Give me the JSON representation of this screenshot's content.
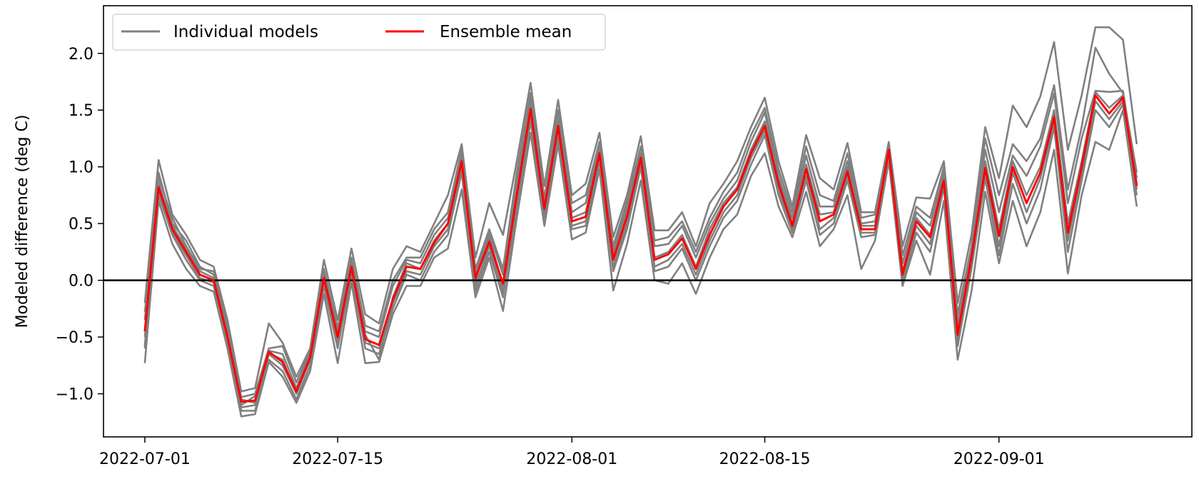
{
  "chart_data": {
    "type": "line",
    "title": "",
    "xlabel": "",
    "ylabel": "Modeled difference (deg C)",
    "x_start": "2022-07-01",
    "x_end": "2022-09-10",
    "xlim": [
      "2022-06-28",
      "2022-09-15"
    ],
    "ylim": [
      -1.38,
      2.42
    ],
    "x_ticks": [
      "2022-07-01",
      "2022-07-15",
      "2022-08-01",
      "2022-08-15",
      "2022-09-01"
    ],
    "y_ticks": [
      -1.0,
      -0.5,
      0.0,
      0.5,
      1.0,
      1.5,
      2.0
    ],
    "y_tick_labels": [
      "−1.0",
      "−0.5",
      "0.0",
      "0.5",
      "1.0",
      "1.5",
      "2.0"
    ],
    "reference_line": {
      "y": 0.0,
      "color": "#000000"
    },
    "legend": {
      "placement": "top-left",
      "entries": [
        {
          "label": "Individual models",
          "color": "#808080"
        },
        {
          "label": "Ensemble mean",
          "color": "#ff0000"
        }
      ]
    },
    "colors": {
      "models": "#808080",
      "mean": "#ff0000"
    },
    "ensemble_mean": [
      -0.45,
      0.82,
      0.45,
      0.25,
      0.05,
      0.0,
      -0.5,
      -1.07,
      -1.06,
      -0.63,
      -0.72,
      -0.98,
      -0.68,
      0.02,
      -0.5,
      0.12,
      -0.52,
      -0.57,
      -0.17,
      0.12,
      0.1,
      0.33,
      0.5,
      1.05,
      0.02,
      0.34,
      -0.03,
      0.75,
      1.51,
      0.63,
      1.36,
      0.52,
      0.56,
      1.12,
      0.18,
      0.56,
      1.08,
      0.18,
      0.23,
      0.37,
      0.1,
      0.4,
      0.65,
      0.8,
      1.12,
      1.36,
      0.85,
      0.48,
      0.98,
      0.52,
      0.58,
      0.96,
      0.45,
      0.45,
      1.15,
      0.05,
      0.52,
      0.38,
      0.88,
      -0.48,
      0.2,
      0.99,
      0.39,
      1.0,
      0.68,
      0.95,
      1.44,
      0.42,
      1.0,
      1.63,
      1.47,
      1.61,
      0.83
    ],
    "models": [
      {
        "values": [
          -0.2,
          1.06,
          0.58,
          0.4,
          0.18,
          0.12,
          -0.35,
          -0.98,
          -0.95,
          -0.38,
          -0.55,
          -0.85,
          -0.6,
          0.18,
          -0.35,
          0.28,
          -0.3,
          -0.38,
          0.1,
          0.3,
          0.25,
          0.5,
          0.75,
          1.2,
          0.2,
          0.68,
          0.4,
          1.05,
          1.74,
          0.83,
          1.59,
          0.75,
          0.85,
          1.3,
          0.38,
          0.75,
          1.27,
          0.44,
          0.44,
          0.6,
          0.3,
          0.68,
          0.85,
          1.05,
          1.35,
          1.61,
          1.05,
          0.65,
          1.28,
          0.9,
          0.8,
          1.21,
          0.6,
          0.6,
          1.22,
          0.3,
          0.73,
          0.72,
          1.05,
          -0.2,
          0.4,
          1.35,
          0.9,
          1.54,
          1.35,
          1.62,
          2.1,
          1.15,
          1.63,
          2.23,
          2.23,
          2.12,
          1.2
        ]
      },
      {
        "values": [
          -0.58,
          0.95,
          0.5,
          0.35,
          0.12,
          0.05,
          -0.4,
          -1.03,
          -1.0,
          -0.6,
          -0.58,
          -0.9,
          -0.62,
          0.1,
          -0.42,
          0.2,
          -0.4,
          -0.45,
          0.0,
          0.2,
          0.2,
          0.45,
          0.6,
          1.15,
          0.1,
          0.45,
          0.1,
          0.95,
          1.65,
          0.72,
          1.5,
          0.68,
          0.75,
          1.22,
          0.3,
          0.7,
          1.18,
          0.35,
          0.38,
          0.52,
          0.25,
          0.55,
          0.78,
          0.95,
          1.28,
          1.52,
          0.98,
          0.6,
          1.18,
          0.75,
          0.7,
          1.12,
          0.55,
          0.58,
          1.2,
          0.22,
          0.65,
          0.55,
          1.0,
          -0.3,
          0.3,
          1.25,
          0.75,
          1.2,
          1.05,
          1.25,
          1.72,
          0.8,
          1.35,
          2.05,
          1.82,
          1.65,
          0.95
        ]
      },
      {
        "values": [
          -0.35,
          0.9,
          0.55,
          0.3,
          0.1,
          0.08,
          -0.45,
          -1.1,
          -1.02,
          -0.62,
          -0.65,
          -0.95,
          -0.65,
          0.05,
          -0.48,
          0.15,
          -0.45,
          -0.5,
          -0.05,
          0.18,
          0.15,
          0.4,
          0.55,
          1.1,
          0.05,
          0.42,
          0.05,
          0.88,
          1.58,
          0.68,
          1.45,
          0.6,
          0.68,
          1.18,
          0.25,
          0.65,
          1.12,
          0.3,
          0.32,
          0.48,
          0.2,
          0.5,
          0.72,
          0.88,
          1.22,
          1.48,
          0.92,
          0.55,
          1.1,
          0.65,
          0.65,
          1.05,
          0.5,
          0.52,
          1.18,
          0.15,
          0.6,
          0.48,
          0.95,
          -0.38,
          0.25,
          1.15,
          0.6,
          1.1,
          0.92,
          1.18,
          1.65,
          0.68,
          1.25,
          1.67,
          1.66,
          1.67,
          0.9
        ]
      },
      {
        "values": [
          -0.5,
          0.78,
          0.42,
          0.22,
          0.02,
          -0.02,
          -0.52,
          -1.12,
          -1.1,
          -0.65,
          -0.75,
          -1.0,
          -0.7,
          -0.02,
          -0.55,
          0.08,
          -0.55,
          -0.6,
          -0.2,
          0.08,
          0.05,
          0.3,
          0.45,
          1.0,
          -0.05,
          0.3,
          -0.1,
          0.7,
          1.45,
          0.58,
          1.3,
          0.48,
          0.52,
          1.08,
          0.12,
          0.5,
          1.05,
          0.12,
          0.18,
          0.32,
          0.05,
          0.35,
          0.6,
          0.75,
          1.08,
          1.32,
          0.8,
          0.45,
          0.92,
          0.45,
          0.55,
          0.92,
          0.42,
          0.42,
          1.12,
          0.0,
          0.48,
          0.32,
          0.85,
          -0.52,
          0.15,
          0.95,
          0.3,
          0.95,
          0.6,
          0.9,
          1.4,
          0.35,
          0.95,
          1.58,
          1.42,
          1.58,
          0.8
        ]
      },
      {
        "values": [
          -0.6,
          0.75,
          0.4,
          0.18,
          0.0,
          -0.05,
          -0.55,
          -1.15,
          -1.15,
          -0.7,
          -0.8,
          -1.05,
          -0.75,
          -0.05,
          -0.6,
          0.05,
          -0.6,
          -0.65,
          -0.25,
          0.05,
          0.0,
          0.25,
          0.4,
          0.95,
          -0.1,
          0.25,
          -0.15,
          0.65,
          1.4,
          0.55,
          1.25,
          0.45,
          0.48,
          1.05,
          0.08,
          0.45,
          1.0,
          0.08,
          0.12,
          0.28,
          0.0,
          0.3,
          0.55,
          0.7,
          1.02,
          1.28,
          0.75,
          0.42,
          0.88,
          0.4,
          0.5,
          0.88,
          0.38,
          0.4,
          1.1,
          -0.02,
          0.42,
          0.25,
          0.82,
          -0.58,
          0.1,
          0.9,
          0.22,
          0.85,
          0.5,
          0.8,
          1.35,
          0.25,
          0.88,
          1.5,
          1.35,
          1.55,
          0.75
        ]
      },
      {
        "values": [
          -0.73,
          0.7,
          0.32,
          0.1,
          -0.05,
          -0.1,
          -0.6,
          -1.2,
          -1.18,
          -0.72,
          -0.85,
          -1.08,
          -0.8,
          -0.12,
          -0.73,
          -0.02,
          -0.73,
          -0.72,
          -0.3,
          -0.05,
          -0.05,
          0.2,
          0.28,
          0.8,
          -0.15,
          0.2,
          -0.27,
          0.55,
          1.3,
          0.48,
          1.2,
          0.36,
          0.42,
          0.98,
          -0.09,
          0.32,
          0.88,
          0.0,
          -0.03,
          0.15,
          -0.12,
          0.2,
          0.45,
          0.58,
          0.92,
          1.12,
          0.65,
          0.38,
          0.78,
          0.3,
          0.45,
          0.75,
          0.1,
          0.35,
          1.05,
          -0.05,
          0.35,
          0.05,
          0.7,
          -0.7,
          -0.1,
          0.78,
          0.15,
          0.7,
          0.3,
          0.6,
          1.15,
          0.06,
          0.75,
          1.22,
          1.15,
          1.5,
          0.65
        ]
      },
      {
        "values": [
          -0.28,
          0.85,
          0.48,
          0.28,
          0.08,
          0.02,
          -0.48,
          -1.05,
          -1.08,
          -0.64,
          -0.7,
          -1.0,
          -0.68,
          0.0,
          -0.45,
          0.1,
          -0.48,
          -0.7,
          -0.15,
          0.15,
          0.1,
          0.35,
          0.5,
          1.02,
          0.0,
          0.38,
          -0.05,
          0.78,
          1.55,
          0.65,
          1.4,
          0.55,
          0.6,
          1.15,
          0.2,
          0.6,
          1.1,
          0.2,
          0.25,
          0.4,
          0.12,
          0.45,
          0.68,
          0.82,
          1.15,
          1.4,
          0.88,
          0.5,
          1.02,
          0.58,
          0.6,
          1.0,
          0.48,
          0.48,
          1.16,
          0.08,
          0.55,
          0.4,
          0.9,
          -0.45,
          0.22,
          1.05,
          0.45,
          1.05,
          0.75,
          1.0,
          1.5,
          0.5,
          1.05,
          1.66,
          1.52,
          1.63,
          0.85
        ]
      }
    ]
  }
}
